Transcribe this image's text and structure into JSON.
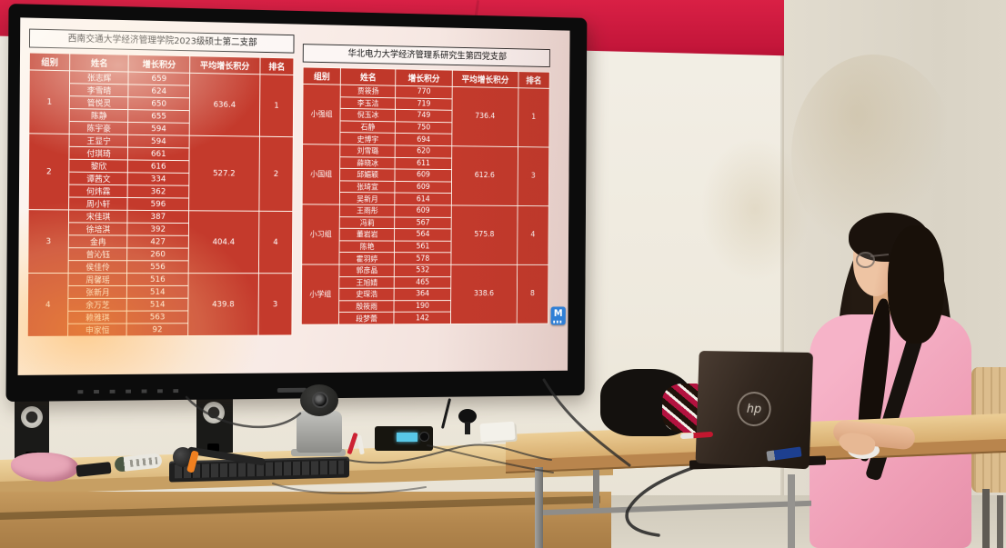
{
  "screen": {
    "m_button_label": "M",
    "left_table": {
      "title": "西南交通大学经济管理学院2023级硕士第二支部",
      "headers": [
        "组别",
        "姓名",
        "增长积分",
        "平均增长积分",
        "排名"
      ],
      "groups": [
        {
          "label": "1",
          "avg": "636.4",
          "rank": "1",
          "rows": [
            [
              "张志辉",
              "659"
            ],
            [
              "李雪晴",
              "624"
            ],
            [
              "管悦灵",
              "650"
            ],
            [
              "陈静",
              "655"
            ],
            [
              "陈宇豪",
              "594"
            ]
          ]
        },
        {
          "label": "2",
          "avg": "527.2",
          "rank": "2",
          "rows": [
            [
              "王显宁",
              "594"
            ],
            [
              "付琪琦",
              "661"
            ],
            [
              "黎欣",
              "616"
            ],
            [
              "谭茜文",
              "334"
            ],
            [
              "何炜霖",
              "362"
            ],
            [
              "周小轩",
              "596"
            ]
          ]
        },
        {
          "label": "3",
          "avg": "404.4",
          "rank": "4",
          "rows": [
            [
              "宋佳琪",
              "387"
            ],
            [
              "徐培淇",
              "392"
            ],
            [
              "金冉",
              "427"
            ],
            [
              "曾沁钰",
              "260"
            ],
            [
              "侯佳伶",
              "556"
            ]
          ]
        },
        {
          "label": "4",
          "avg": "439.8",
          "rank": "3",
          "rows": [
            [
              "周馨瑶",
              "516"
            ],
            [
              "张新月",
              "514"
            ],
            [
              "余万芝",
              "514"
            ],
            [
              "赖雅琪",
              "563"
            ],
            [
              "申家恒",
              "92"
            ]
          ]
        }
      ]
    },
    "right_table": {
      "title": "华北电力大学经济管理系研究生第四党支部",
      "headers": [
        "组别",
        "姓名",
        "增长积分",
        "平均增长积分",
        "排名"
      ],
      "groups": [
        {
          "label": "小强组",
          "avg": "736.4",
          "rank": "1",
          "rows": [
            [
              "贾筱扬",
              "770"
            ],
            [
              "李玉洁",
              "719"
            ],
            [
              "倪玉冰",
              "749"
            ],
            [
              "石静",
              "750"
            ],
            [
              "史博宇",
              "694"
            ]
          ]
        },
        {
          "label": "小国组",
          "avg": "612.6",
          "rank": "3",
          "rows": [
            [
              "刘雪璐",
              "620"
            ],
            [
              "薛晓冰",
              "611"
            ],
            [
              "邱媚颖",
              "609"
            ],
            [
              "张琦宣",
              "609"
            ],
            [
              "吴新月",
              "614"
            ]
          ]
        },
        {
          "label": "小习组",
          "avg": "575.8",
          "rank": "4",
          "rows": [
            [
              "王雨彤",
              "609"
            ],
            [
              "冯莉",
              "567"
            ],
            [
              "董岩岩",
              "564"
            ],
            [
              "陈艳",
              "561"
            ],
            [
              "霍羽婷",
              "578"
            ]
          ]
        },
        {
          "label": "小学组",
          "avg": "338.6",
          "rank": "8",
          "rows": [
            [
              "郭彦晶",
              "532"
            ],
            [
              "王旭婧",
              "465"
            ],
            [
              "史琛浩",
              "364"
            ],
            [
              "殷筱雨",
              "190"
            ],
            [
              "段梦蕾",
              "142"
            ]
          ]
        }
      ]
    }
  },
  "scene": {
    "laptop_logo": "hp"
  }
}
